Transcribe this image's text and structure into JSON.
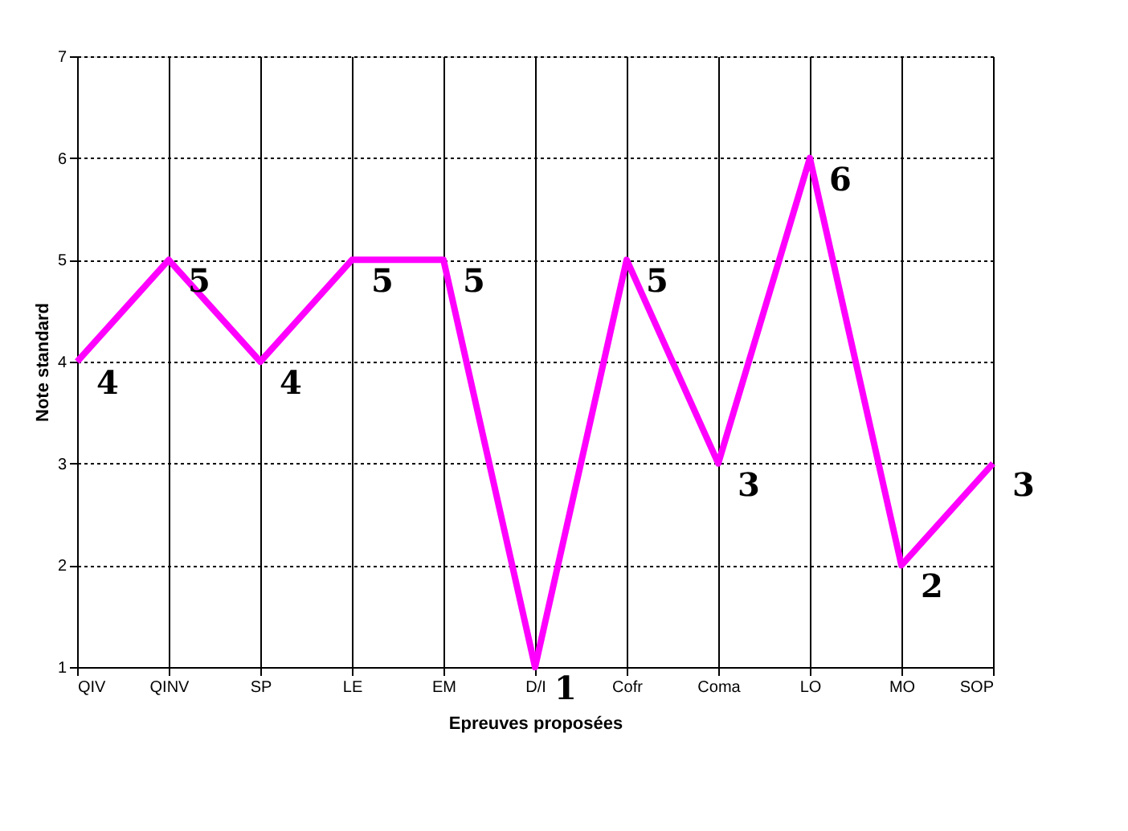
{
  "chart_data": {
    "type": "line",
    "xlabel": "Epreuves proposées",
    "ylabel": "Note standard",
    "categories": [
      "QIV",
      "QINV",
      "SP",
      "LE",
      "EM",
      "D/I",
      "Cofr",
      "Coma",
      "LO",
      "MO",
      "SOP"
    ],
    "series": [
      {
        "color": "#ff00ff",
        "values": [
          4,
          5,
          4,
          5,
          5,
          1,
          5,
          3,
          6,
          2,
          3
        ]
      }
    ],
    "ylim": [
      1,
      7
    ],
    "yticks": [
      1,
      2,
      3,
      4,
      5,
      6,
      7
    ],
    "grid": true,
    "data_labels": true,
    "marker": "none",
    "line_style": "solid"
  }
}
